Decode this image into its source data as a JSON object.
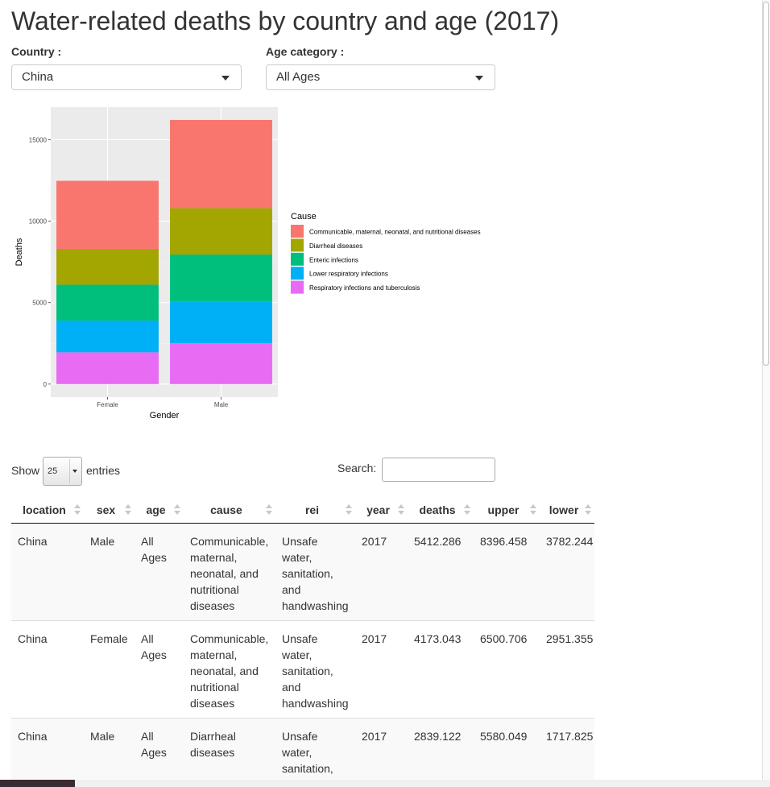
{
  "title": "Water-related deaths by country and age (2017)",
  "controls": {
    "country_label": "Country :",
    "country_value": "China",
    "age_label": "Age category :",
    "age_value": "All Ages"
  },
  "chart_data": {
    "type": "bar",
    "stacked": true,
    "categories": [
      "Female",
      "Male"
    ],
    "xlabel": "Gender",
    "ylabel": "Deaths",
    "ylim": [
      -800,
      17000
    ],
    "yticks": [
      0,
      5000,
      10000,
      15000
    ],
    "legend_title": "Cause",
    "legend_position": "right",
    "series": [
      {
        "name": "Respiratory infections and tuberculosis",
        "color": "#E76BF3",
        "values": [
          1950,
          2500
        ]
      },
      {
        "name": "Lower respiratory infections",
        "color": "#00B0F6",
        "values": [
          1950,
          2550
        ]
      },
      {
        "name": "Enteric infections",
        "color": "#00BF7D",
        "values": [
          2200,
          2900
        ]
      },
      {
        "name": "Diarrheal diseases",
        "color": "#A3A500",
        "values": [
          2200,
          2850
        ]
      },
      {
        "name": "Communicable, maternal, neonatal, and nutritional diseases",
        "color": "#F8766D",
        "values": [
          4180,
          5410
        ]
      }
    ]
  },
  "datatable": {
    "show_label": "Show",
    "page_length": "25",
    "entries_label": "entries",
    "search_label": "Search:",
    "columns": [
      "location",
      "sex",
      "age",
      "cause",
      "rei",
      "year",
      "deaths",
      "upper",
      "lower"
    ],
    "rows": [
      [
        "China",
        "Male",
        "All Ages",
        "Communicable, maternal, neonatal, and nutritional diseases",
        "Unsafe water, sanitation, and handwashing",
        "2017",
        "5412.286",
        "8396.458",
        "3782.244"
      ],
      [
        "China",
        "Female",
        "All Ages",
        "Communicable, maternal, neonatal, and nutritional diseases",
        "Unsafe water, sanitation, and handwashing",
        "2017",
        "4173.043",
        "6500.706",
        "2951.355"
      ],
      [
        "China",
        "Male",
        "All Ages",
        "Diarrheal diseases",
        "Unsafe water, sanitation, and handwashing",
        "2017",
        "2839.122",
        "5580.049",
        "1717.825"
      ]
    ]
  }
}
